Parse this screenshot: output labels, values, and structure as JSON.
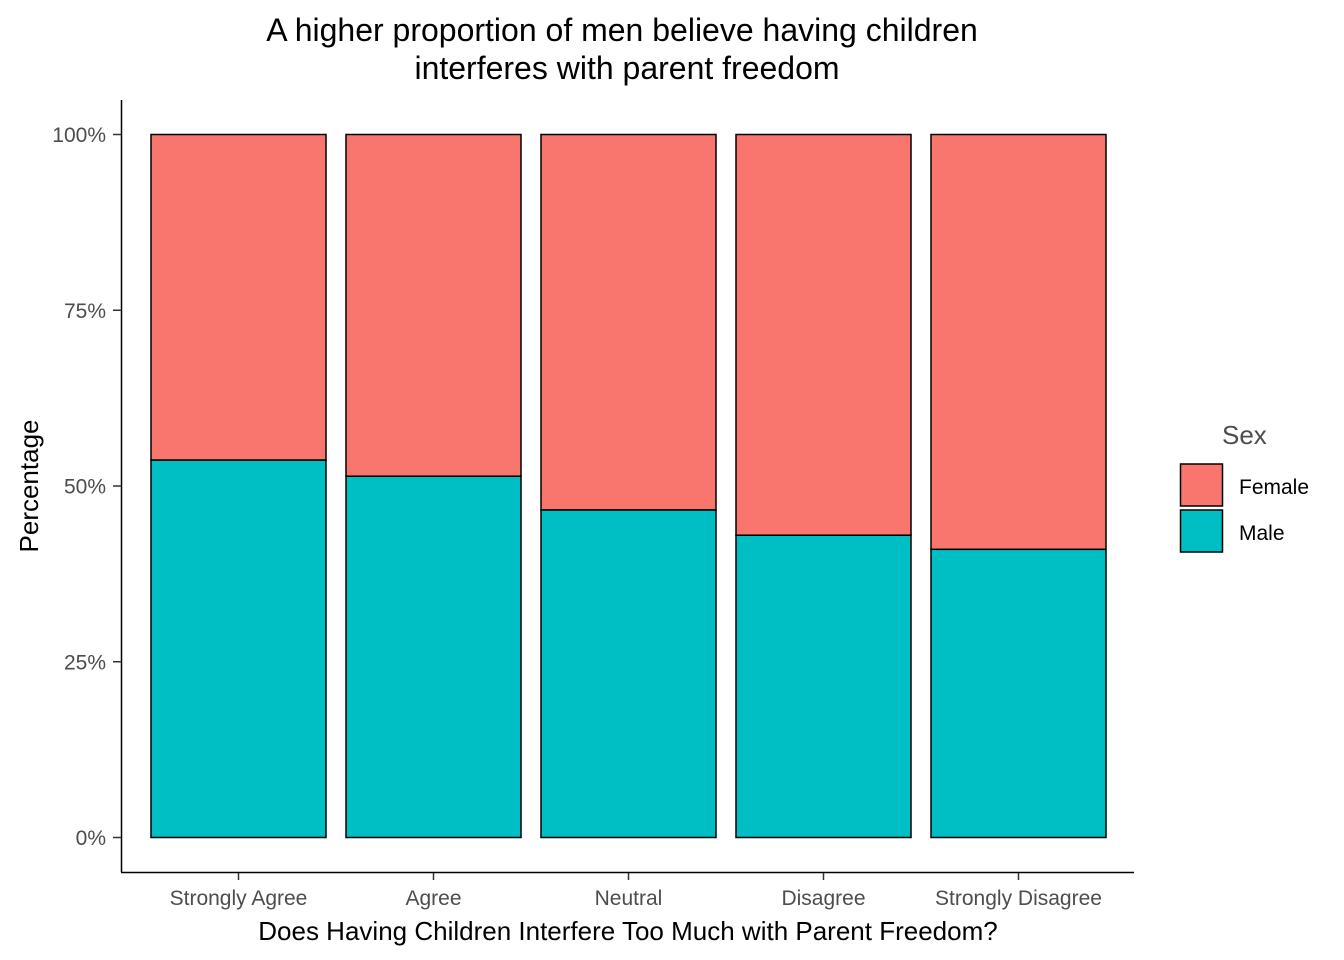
{
  "chart_data": {
    "type": "bar",
    "stacked": true,
    "normalized": true,
    "title_lines": [
      "A higher proportion of men believe having children",
      "interferes with parent freedom"
    ],
    "xlabel": "Does Having Children Interfere Too Much with Parent Freedom?",
    "ylabel": "Percentage",
    "categories": [
      "Strongly Agree",
      "Agree",
      "Neutral",
      "Disagree",
      "Strongly Disagree"
    ],
    "series": [
      {
        "name": "Male",
        "color": "#00BFC4",
        "values": [
          0.537,
          0.514,
          0.466,
          0.43,
          0.41
        ]
      },
      {
        "name": "Female",
        "color": "#F8766D",
        "values": [
          0.463,
          0.486,
          0.534,
          0.57,
          0.59
        ]
      }
    ],
    "ylim": [
      0,
      1
    ],
    "yticks": [
      {
        "value": 0,
        "label": "0%"
      },
      {
        "value": 0.25,
        "label": "25%"
      },
      {
        "value": 0.5,
        "label": "50%"
      },
      {
        "value": 0.75,
        "label": "75%"
      },
      {
        "value": 1,
        "label": "100%"
      }
    ],
    "grid": false,
    "legend": {
      "title": "Sex",
      "placement": "right",
      "entries": [
        {
          "label": "Female",
          "color": "#F8766D"
        },
        {
          "label": "Male",
          "color": "#00BFC4"
        }
      ]
    }
  }
}
